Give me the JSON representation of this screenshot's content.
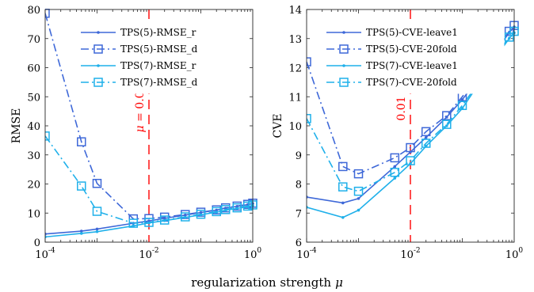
{
  "xlabel": "regularization strength",
  "xlabel_symbol": "μ",
  "colors": {
    "dark_blue": "#3e68d8",
    "light_blue": "#1fb0ea",
    "marker_line": "#ff0000"
  },
  "chart_data": [
    {
      "type": "line",
      "x_scale": "log",
      "xlim": [
        0.0001,
        1
      ],
      "ylim": [
        0,
        80
      ],
      "ylabel": "RMSE",
      "xticks": [
        {
          "base": "10",
          "exp": "-4",
          "value": 0.0001
        },
        {
          "base": "10",
          "exp": "-2",
          "value": 0.01
        },
        {
          "base": "10",
          "exp": "0",
          "value": 1
        }
      ],
      "yticks": [
        0,
        10,
        20,
        30,
        40,
        50,
        60,
        70,
        80
      ],
      "vline": {
        "x": 0.01,
        "label_symbol": "μ",
        "label_text": " = 0.01"
      },
      "legend_position": "top-right",
      "series": [
        {
          "name": "TPS(5)-RMSE_r",
          "color": "#3e68d8",
          "dash": "solid",
          "marker": "dot",
          "x": [
            0.0001,
            0.0005,
            0.001,
            0.005,
            0.01,
            0.02,
            0.05,
            0.1,
            0.2,
            0.3,
            0.5,
            0.8,
            1
          ],
          "y": [
            2.8,
            3.8,
            4.5,
            6.5,
            7.3,
            8.2,
            9.3,
            10.2,
            11.0,
            11.7,
            12.3,
            12.9,
            13.3
          ]
        },
        {
          "name": "TPS(5)-RMSE_d",
          "color": "#3e68d8",
          "dash": "dashdot",
          "marker": "square",
          "x": [
            0.0001,
            0.0005,
            0.001,
            0.005,
            0.01,
            0.02,
            0.05,
            0.1,
            0.2,
            0.3,
            0.5,
            0.8,
            1
          ],
          "y": [
            78.7,
            34.5,
            20.2,
            8.0,
            8.1,
            8.6,
            9.5,
            10.3,
            11.1,
            11.8,
            12.4,
            13.0,
            13.4
          ]
        },
        {
          "name": "TPS(7)-RMSE_r",
          "color": "#1fb0ea",
          "dash": "solid",
          "marker": "dot",
          "x": [
            0.0001,
            0.0005,
            0.001,
            0.005,
            0.01,
            0.02,
            0.05,
            0.1,
            0.2,
            0.3,
            0.5,
            0.8,
            1
          ],
          "y": [
            1.8,
            3.0,
            3.6,
            5.6,
            6.6,
            7.4,
            8.5,
            9.4,
            10.3,
            11.0,
            11.6,
            12.2,
            12.6
          ]
        },
        {
          "name": "TPS(7)-RMSE_d",
          "color": "#1fb0ea",
          "dash": "dashdot",
          "marker": "square",
          "x": [
            0.0001,
            0.0005,
            0.001,
            0.005,
            0.01,
            0.02,
            0.05,
            0.1,
            0.2,
            0.3,
            0.5,
            0.8,
            1
          ],
          "y": [
            36.5,
            19.3,
            10.6,
            6.5,
            6.8,
            7.6,
            8.7,
            9.6,
            10.5,
            11.2,
            11.8,
            12.4,
            12.8
          ]
        }
      ]
    },
    {
      "type": "line",
      "x_scale": "log",
      "xlim": [
        0.0001,
        1
      ],
      "ylim": [
        6,
        14
      ],
      "ylabel": "CVE",
      "xticks": [
        {
          "base": "10",
          "exp": "-4",
          "value": 0.0001
        },
        {
          "base": "10",
          "exp": "-2",
          "value": 0.01
        },
        {
          "base": "10",
          "exp": "0",
          "value": 1
        }
      ],
      "yticks": [
        6,
        7,
        8,
        9,
        10,
        11,
        12,
        13,
        14
      ],
      "vline": {
        "x": 0.01,
        "label_text": "0.01"
      },
      "legend_position": "top-right",
      "series": [
        {
          "name": "TPS(5)-CVE-leave1",
          "color": "#3e68d8",
          "dash": "solid",
          "marker": "dot",
          "x": [
            0.0001,
            0.0005,
            0.001,
            0.005,
            0.01,
            0.02,
            0.05,
            0.1,
            0.2,
            0.3,
            0.5,
            0.8,
            1
          ],
          "y": [
            7.55,
            7.35,
            7.5,
            8.6,
            9.1,
            9.6,
            10.3,
            10.9,
            11.6,
            12.1,
            12.7,
            13.2,
            13.4
          ]
        },
        {
          "name": "TPS(5)-CVE-20fold",
          "color": "#3e68d8",
          "dash": "dashdot",
          "marker": "square",
          "x": [
            0.0001,
            0.0005,
            0.001,
            0.005,
            0.01,
            0.02,
            0.05,
            0.1,
            0.2,
            0.3,
            0.5,
            0.8,
            1
          ],
          "y": [
            12.2,
            8.6,
            8.35,
            8.9,
            9.25,
            9.8,
            10.35,
            11.0,
            11.7,
            12.15,
            12.75,
            13.25,
            13.45
          ]
        },
        {
          "name": "TPS(7)-CVE-leave1",
          "color": "#1fb0ea",
          "dash": "solid",
          "marker": "dot",
          "x": [
            0.0001,
            0.0005,
            0.001,
            0.005,
            0.01,
            0.02,
            0.05,
            0.1,
            0.2,
            0.3,
            0.5,
            0.8,
            1
          ],
          "y": [
            7.2,
            6.85,
            7.1,
            8.2,
            8.7,
            9.3,
            10.0,
            10.6,
            11.4,
            11.9,
            12.5,
            13.0,
            13.2
          ]
        },
        {
          "name": "TPS(7)-CVE-20fold",
          "color": "#1fb0ea",
          "dash": "dashdot",
          "marker": "square",
          "x": [
            0.0001,
            0.0005,
            0.001,
            0.005,
            0.01,
            0.02,
            0.05,
            0.1,
            0.2,
            0.3,
            0.5,
            0.8,
            1
          ],
          "y": [
            10.25,
            7.9,
            7.75,
            8.4,
            8.8,
            9.4,
            10.05,
            10.7,
            11.45,
            11.95,
            12.55,
            13.05,
            13.25
          ]
        }
      ]
    }
  ]
}
